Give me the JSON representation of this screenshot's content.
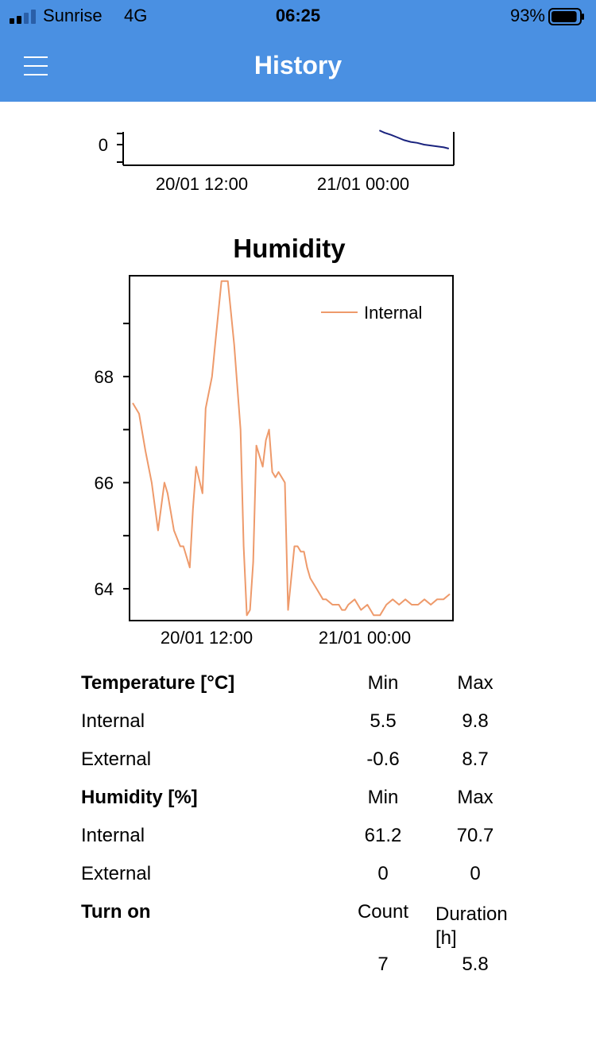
{
  "status_bar": {
    "carrier": "Sunrise",
    "network": "4G",
    "time": "06:25",
    "battery_percent": "93%",
    "battery_level": 0.93
  },
  "header": {
    "title": "History",
    "menu_icon": "hamburger-menu-icon"
  },
  "colors": {
    "accent": "#4a90e2",
    "internal_humidity_line": "#ee9a6b",
    "top_chart_line": "#1a237e"
  },
  "chart_data": [
    {
      "type": "line",
      "note_visible": "partially scrolled chart, only bottom part visible",
      "title": "",
      "xlabel": "",
      "ylabel": "",
      "x_ticks": [
        "20/01 12:00",
        "21/01 00:00"
      ],
      "y_ticks": [
        "0"
      ],
      "series": [
        {
          "x": [
            0.775,
            0.79,
            0.81,
            0.83,
            0.85,
            0.87,
            0.89,
            0.91,
            0.93,
            0.95,
            0.97,
            0.985
          ],
          "y": [
            0.32,
            0.27,
            0.22,
            0.16,
            0.1,
            0.06,
            0.04,
            0.0,
            -0.02,
            -0.04,
            -0.06,
            -0.09
          ]
        }
      ]
    },
    {
      "type": "line",
      "title": "Humidity",
      "xlabel": "",
      "ylabel": "",
      "x_ticks": [
        "20/01 12:00",
        "21/01 00:00"
      ],
      "y_ticks": [
        64,
        66,
        68
      ],
      "ylim": [
        63.4,
        69.9
      ],
      "legend": "top-right",
      "series": [
        {
          "name": "Internal",
          "x": [
            0.0,
            0.02,
            0.04,
            0.06,
            0.08,
            0.1,
            0.11,
            0.13,
            0.15,
            0.16,
            0.18,
            0.19,
            0.2,
            0.22,
            0.23,
            0.25,
            0.26,
            0.27,
            0.28,
            0.3,
            0.32,
            0.34,
            0.35,
            0.36,
            0.37,
            0.38,
            0.39,
            0.41,
            0.42,
            0.43,
            0.44,
            0.45,
            0.46,
            0.47,
            0.48,
            0.49,
            0.5,
            0.51,
            0.52,
            0.53,
            0.54,
            0.55,
            0.56,
            0.58,
            0.6,
            0.61,
            0.63,
            0.64,
            0.65,
            0.66,
            0.67,
            0.68,
            0.7,
            0.72,
            0.74,
            0.76,
            0.78,
            0.8,
            0.82,
            0.84,
            0.86,
            0.88,
            0.9,
            0.92,
            0.94,
            0.96,
            0.98,
            1.0
          ],
          "y": [
            67.5,
            67.3,
            66.6,
            66.0,
            65.1,
            66.0,
            65.8,
            65.1,
            64.8,
            64.8,
            64.4,
            65.5,
            66.3,
            65.8,
            67.4,
            68.0,
            68.6,
            69.2,
            69.8,
            69.8,
            68.6,
            67.0,
            64.8,
            63.5,
            63.6,
            64.5,
            66.7,
            66.3,
            66.8,
            67.0,
            66.2,
            66.1,
            66.2,
            66.1,
            66.0,
            63.6,
            64.2,
            64.8,
            64.8,
            64.7,
            64.7,
            64.4,
            64.2,
            64.0,
            63.8,
            63.8,
            63.7,
            63.7,
            63.7,
            63.6,
            63.6,
            63.7,
            63.8,
            63.6,
            63.7,
            63.5,
            63.5,
            63.7,
            63.8,
            63.7,
            63.8,
            63.7,
            63.7,
            63.8,
            63.7,
            63.8,
            63.8,
            63.9
          ]
        }
      ]
    }
  ],
  "stats": {
    "rows": [
      {
        "label": "Temperature [°C]",
        "col2": "Min",
        "col3": "Max",
        "header": true
      },
      {
        "label": "Internal",
        "col2": "5.5",
        "col3": "9.8",
        "header": false
      },
      {
        "label": "External",
        "col2": "-0.6",
        "col3": "8.7",
        "header": false
      },
      {
        "label": "Humidity [%]",
        "col2": "Min",
        "col3": "Max",
        "header": true
      },
      {
        "label": "Internal",
        "col2": "61.2",
        "col3": "70.7",
        "header": false
      },
      {
        "label": "External",
        "col2": "0",
        "col3": "0",
        "header": false
      },
      {
        "label": "Turn on",
        "col2": "Count",
        "col3": "Duration [h]",
        "header": true
      },
      {
        "label": "",
        "col2": "7",
        "col3": "5.8",
        "header": false
      }
    ]
  }
}
